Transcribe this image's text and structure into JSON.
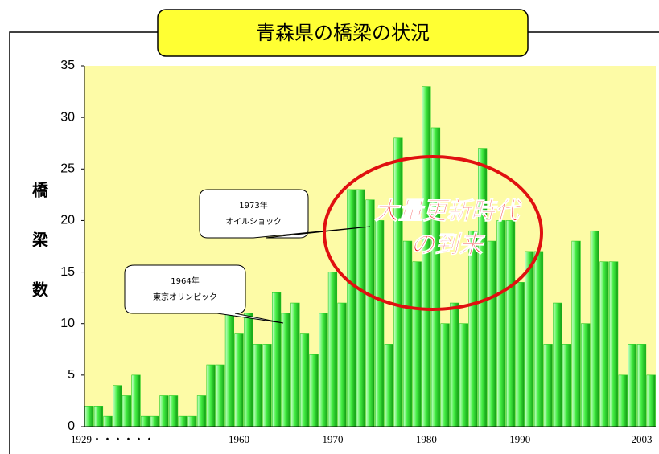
{
  "chart_data": {
    "type": "bar",
    "title": "青森県の橋梁の状況",
    "y_label": "橋梁数",
    "categories": [
      "1929・・・・・・",
      null,
      null,
      null,
      null,
      null,
      null,
      null,
      null,
      null,
      null,
      null,
      null,
      null,
      null,
      null,
      "1960",
      null,
      null,
      null,
      null,
      null,
      null,
      null,
      null,
      null,
      "1970",
      null,
      null,
      null,
      null,
      null,
      null,
      null,
      null,
      null,
      "1980",
      null,
      null,
      null,
      null,
      null,
      null,
      null,
      null,
      null,
      "1990",
      null,
      null,
      null,
      null,
      null,
      null,
      null,
      null,
      null,
      null,
      null,
      null,
      "2003",
      null
    ],
    "values": [
      2,
      2,
      1,
      4,
      3,
      5,
      1,
      1,
      3,
      3,
      1,
      1,
      3,
      6,
      6,
      11,
      9,
      11,
      8,
      8,
      13,
      11,
      12,
      9,
      7,
      11,
      15,
      12,
      23,
      23,
      22,
      20,
      8,
      28,
      18,
      16,
      33,
      29,
      10,
      12,
      10,
      19,
      27,
      18,
      20,
      20,
      14,
      17,
      17,
      8,
      12,
      8,
      18,
      10,
      19,
      16,
      16,
      5,
      8,
      8,
      5
    ],
    "color": "#22cc22",
    "ylim": [
      0,
      35
    ],
    "yticks": [
      0,
      5,
      10,
      15,
      20,
      25,
      30,
      35
    ],
    "annotations": [
      {
        "lines": [
          "1973年",
          "オイルショック"
        ]
      },
      {
        "lines": [
          "1964年",
          "東京オリンピック"
        ]
      },
      {
        "lines": [
          "大量更新時代",
          "の到来"
        ]
      }
    ]
  }
}
